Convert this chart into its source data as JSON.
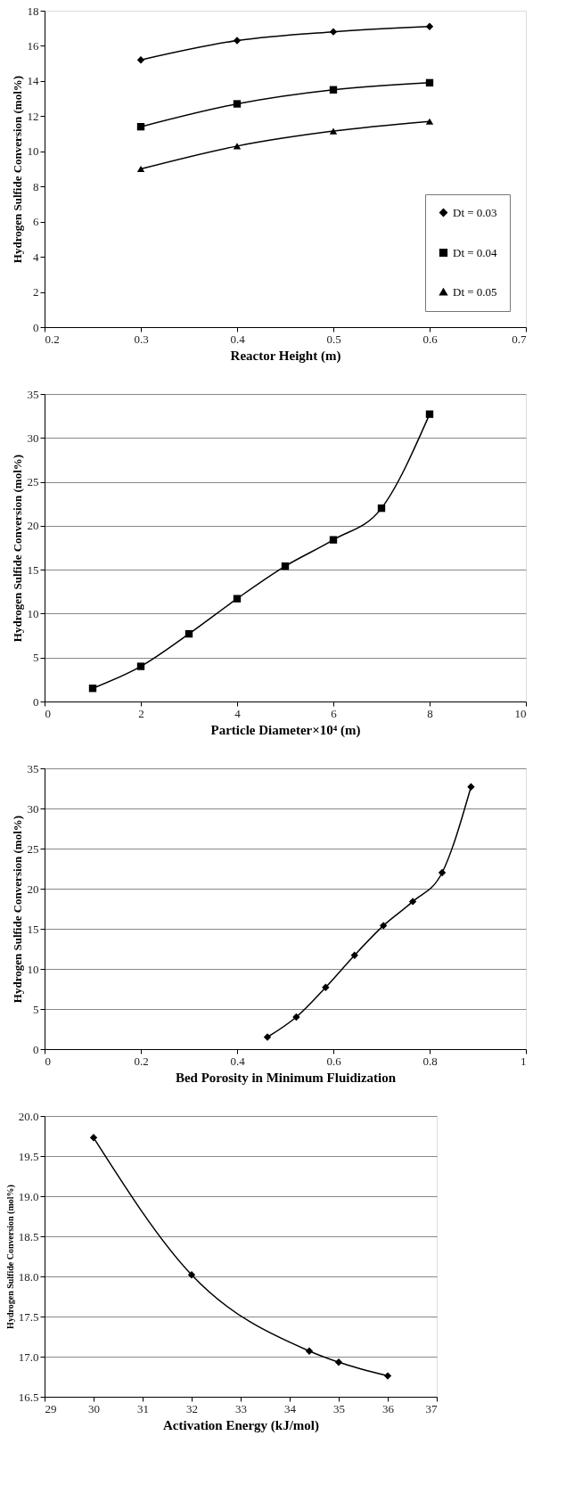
{
  "chart_data": [
    {
      "type": "line",
      "xlabel": "Reactor Height (m)",
      "ylabel": "Hydrogen Sulfide Conversion (mol%)",
      "x": [
        0.3,
        0.4,
        0.5,
        0.6
      ],
      "xlim": [
        0.2,
        0.7
      ],
      "xticks": [
        0.2,
        0.3,
        0.4,
        0.5,
        0.6,
        0.7
      ],
      "ylim": [
        0,
        18
      ],
      "yticks": [
        0,
        2,
        4,
        6,
        8,
        10,
        12,
        14,
        16,
        18
      ],
      "grid": false,
      "legend": "bottom right",
      "series": [
        {
          "name": "Dt = 0.03",
          "color": "#000000",
          "marker": "diamond",
          "values": [
            15.2,
            16.3,
            16.8,
            17.1
          ]
        },
        {
          "name": "Dt = 0.04",
          "color": "#000000",
          "marker": "square",
          "values": [
            11.4,
            12.7,
            13.5,
            13.9
          ]
        },
        {
          "name": "Dt = 0.05",
          "color": "#000000",
          "marker": "triangle",
          "values": [
            9.0,
            10.3,
            11.15,
            11.7
          ]
        }
      ]
    },
    {
      "type": "line",
      "xlabel": "Particle Diameter×10⁴ (m)",
      "ylabel": "Hydrogen Sulfide Conversion (mol%)",
      "x": [
        1,
        2,
        3,
        4,
        5,
        6,
        7,
        8
      ],
      "xlim": [
        0,
        10
      ],
      "xticks": [
        0,
        2,
        4,
        6,
        8,
        10
      ],
      "ylim": [
        0,
        35
      ],
      "yticks": [
        0,
        5,
        10,
        15,
        20,
        25,
        30,
        35
      ],
      "grid": "y",
      "marker": "square",
      "series": [
        {
          "color": "#000000",
          "values": [
            1.5,
            4.0,
            7.7,
            11.7,
            15.4,
            18.4,
            22.0,
            32.7
          ]
        }
      ]
    },
    {
      "type": "line",
      "xlabel": "Bed Porosity in Minimum Fluidization",
      "ylabel": "Hydrogen Sulfide Conversion (mol%)",
      "x": [
        0.463,
        0.523,
        0.584,
        0.644,
        0.704,
        0.765,
        0.826,
        0.886
      ],
      "xlim": [
        0,
        1
      ],
      "xticks": [
        0,
        0.2,
        0.4,
        0.6,
        0.8,
        1
      ],
      "ylim": [
        0,
        35
      ],
      "yticks": [
        0,
        5,
        10,
        15,
        20,
        25,
        30,
        35
      ],
      "grid": "y",
      "marker": "diamond",
      "series": [
        {
          "color": "#000000",
          "values": [
            1.5,
            4.0,
            7.7,
            11.7,
            15.4,
            18.4,
            22.0,
            32.7
          ]
        }
      ]
    },
    {
      "type": "line",
      "xlabel": "Activation Energy (kJ/mol)",
      "ylabel": "Hydrogen Sulfide Conversion (mol%)",
      "x": [
        30,
        32,
        34.4,
        35,
        36
      ],
      "xlim": [
        29,
        37
      ],
      "xticks": [
        29,
        30,
        31,
        32,
        33,
        34,
        35,
        36,
        37
      ],
      "ylim": [
        16.5,
        20
      ],
      "yticks": [
        {
          "value": 16.5,
          "label": "16.5"
        },
        {
          "value": 17,
          "label": "17.0"
        },
        {
          "value": 17.5,
          "label": "17.5"
        },
        {
          "value": 18,
          "label": "18.0"
        },
        {
          "value": 18.5,
          "label": "18.5"
        },
        {
          "value": 19,
          "label": "19.0"
        },
        {
          "value": 19.5,
          "label": "19.5"
        },
        {
          "value": 20,
          "label": "20.0"
        }
      ],
      "grid": "y",
      "marker": "diamond",
      "series": [
        {
          "color": "#000000",
          "values": [
            19.73,
            18.02,
            17.07,
            16.93,
            16.76
          ]
        }
      ]
    }
  ]
}
